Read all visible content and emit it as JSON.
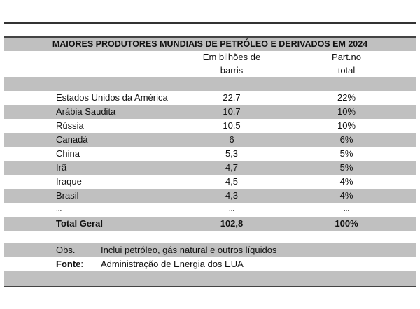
{
  "title": "MAIORES PRODUTORES MUNDIAIS DE PETRÓLEO E DERIVADOS EM 2024",
  "headers": {
    "value": [
      "Em bilhões de",
      "barris"
    ],
    "share": [
      "Part.no",
      "total"
    ]
  },
  "rows": [
    {
      "country": "Estados Unidos da América",
      "value": "22,7",
      "share": "22%"
    },
    {
      "country": "Arábia Saudita",
      "value": "10,7",
      "share": "10%"
    },
    {
      "country": "Rússia",
      "value": "10,5",
      "share": "10%"
    },
    {
      "country": "Canadá",
      "value": "6",
      "share": "6%"
    },
    {
      "country": "China",
      "value": "5,3",
      "share": "5%"
    },
    {
      "country": "Irã",
      "value": "4,7",
      "share": "5%"
    },
    {
      "country": "Iraque",
      "value": "4,5",
      "share": "4%"
    },
    {
      "country": "Brasil",
      "value": "4,3",
      "share": "4%"
    },
    {
      "country": "...",
      "value": "...",
      "share": "..."
    }
  ],
  "total": {
    "label": "Total Geral",
    "value": "102,8",
    "share": "100%"
  },
  "notes": {
    "obs_label": "Obs.",
    "obs_text": "Inclui petróleo, gás natural e outros líquidos",
    "source_label": "Fonte",
    "source_colon": ":",
    "source_text": "Administração de Energia dos EUA"
  }
}
